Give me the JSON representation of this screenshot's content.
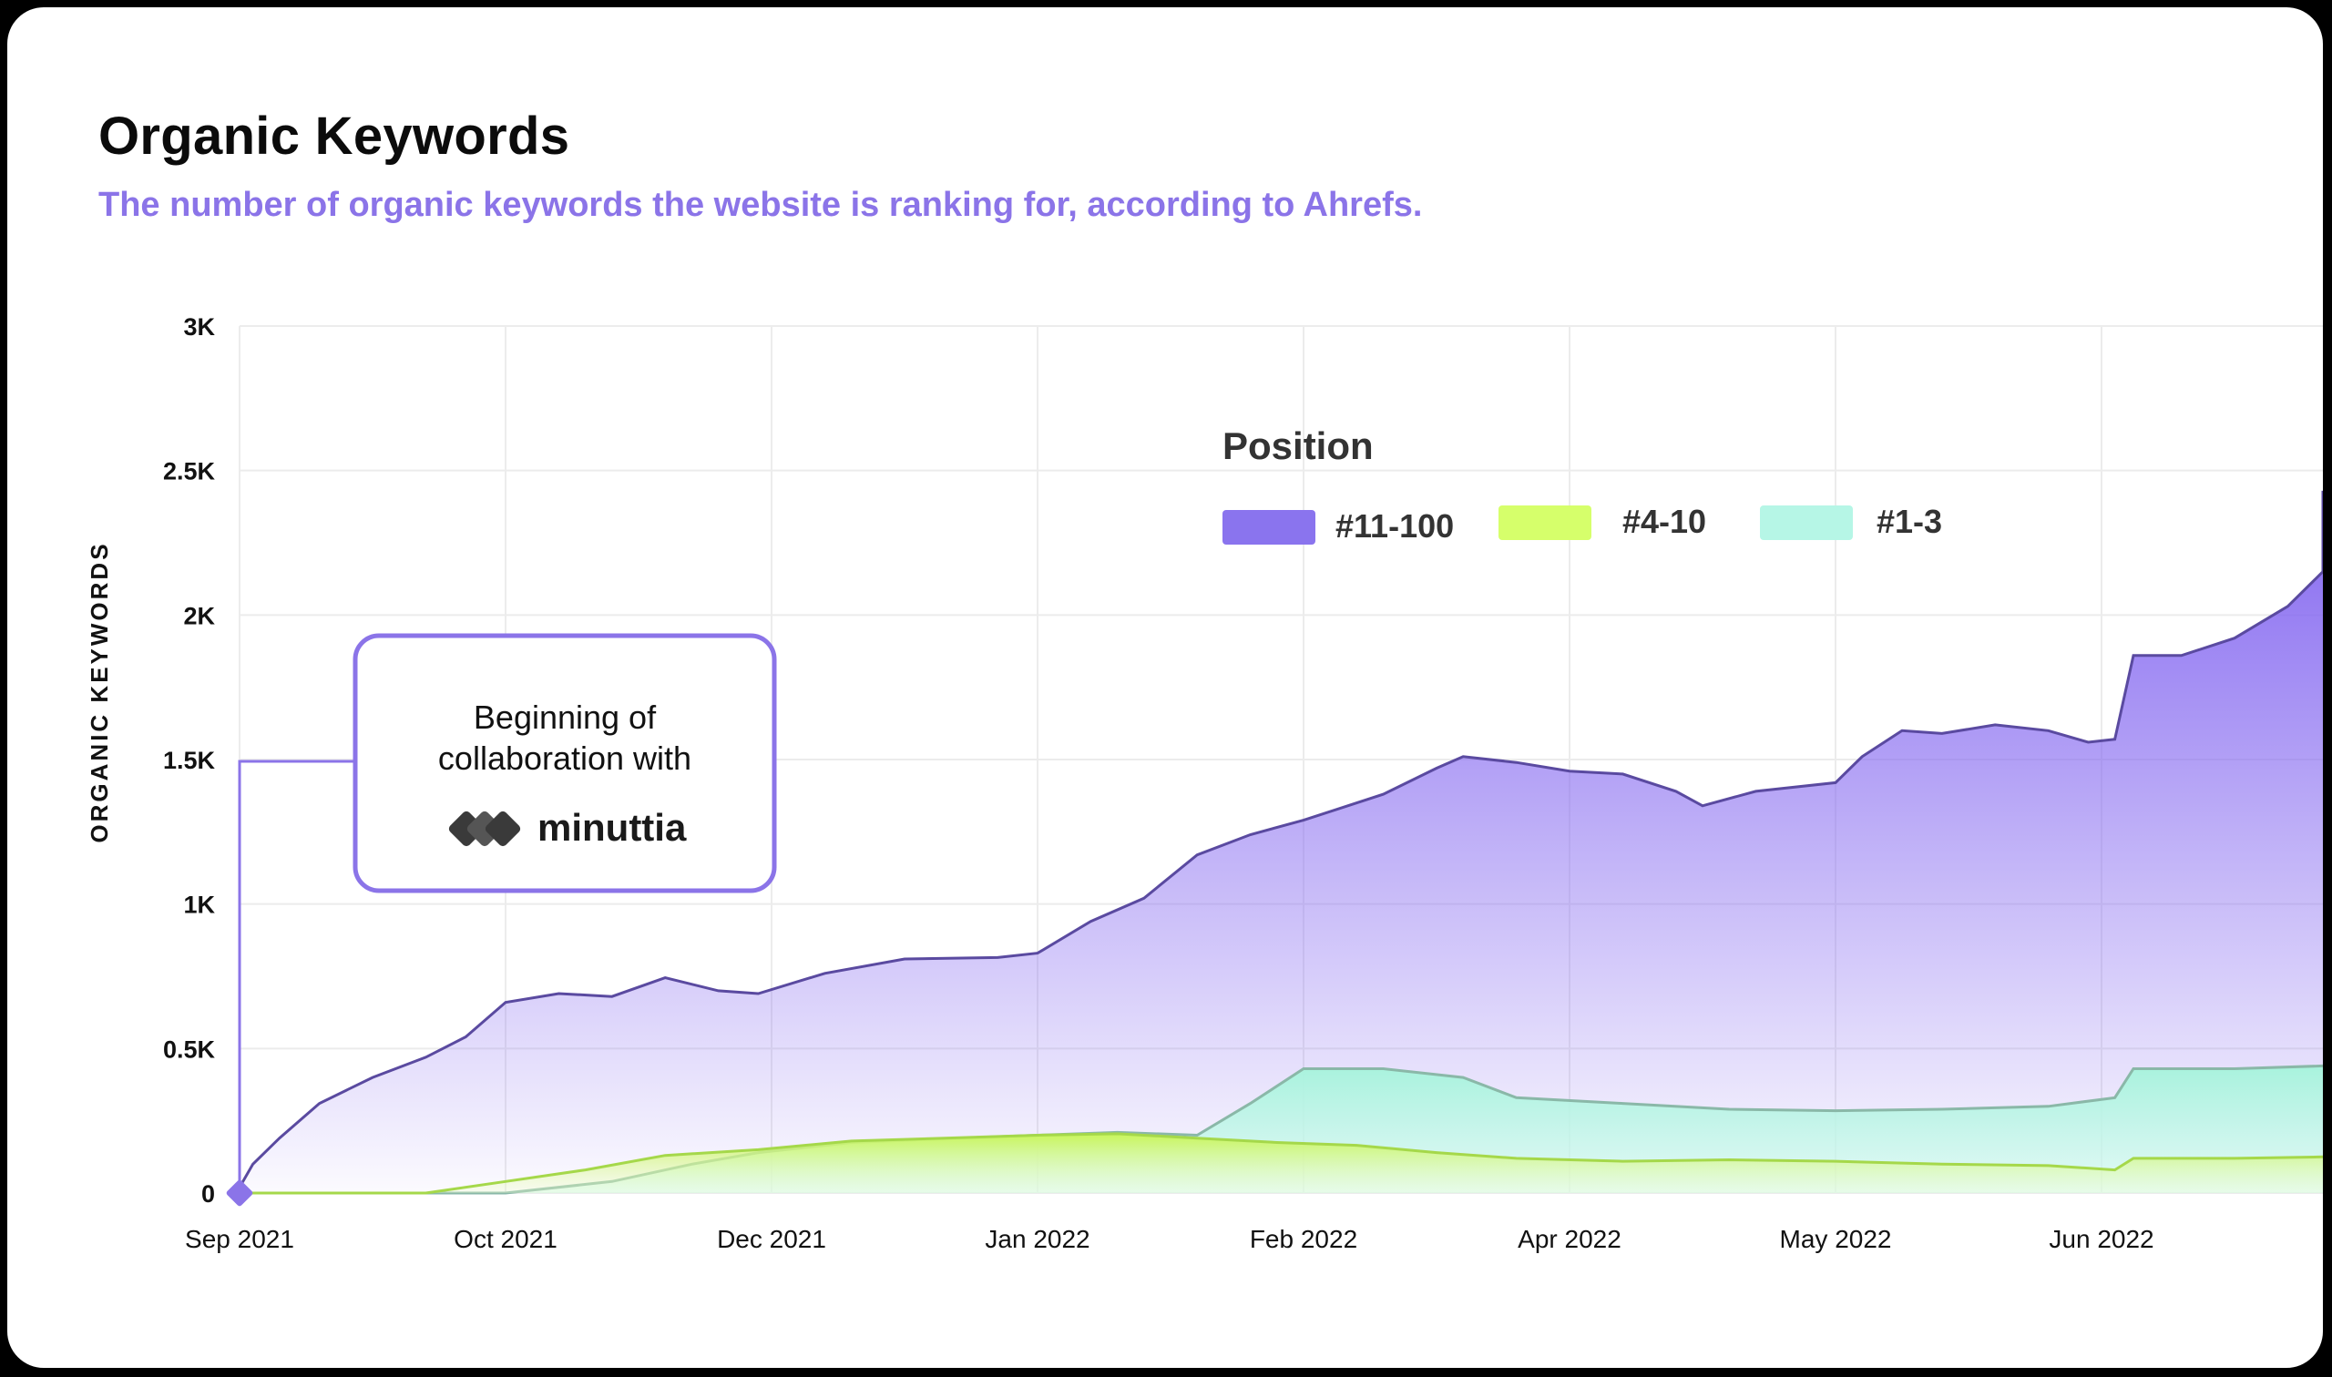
{
  "header": {
    "title": "Organic Keywords",
    "subtitle": "The number of organic keywords the website is ranking for, according to Ahrefs."
  },
  "annotation": {
    "line1": "Beginning of",
    "line2": "collaboration with",
    "brand": "minuttia"
  },
  "colors": {
    "series_11_100": "#8a74ee",
    "series_4_10": "#d6ff6b",
    "series_1_3": "#b6f6e6",
    "accent": "#8b74e8",
    "grid": "#ececec"
  },
  "chart_data": {
    "type": "area",
    "ylabel": "ORGANIC KEYWORDS",
    "ylim": [
      0,
      3000
    ],
    "y_ticks": [
      {
        "value": 0,
        "label": "0"
      },
      {
        "value": 500,
        "label": "0.5K"
      },
      {
        "value": 1000,
        "label": "1K"
      },
      {
        "value": 1500,
        "label": "1.5K"
      },
      {
        "value": 2000,
        "label": "2K"
      },
      {
        "value": 2500,
        "label": "2.5K"
      },
      {
        "value": 3000,
        "label": "3K"
      }
    ],
    "x_ticks": [
      "Sep 2021",
      "Oct 2021",
      "Dec 2021",
      "Jan 2022",
      "Feb 2022",
      "Apr 2022",
      "May 2022",
      "Jun 2022"
    ],
    "legend_title": "Position",
    "legend_position": "top-center",
    "grid": true,
    "series": [
      {
        "name": "#11-100",
        "color": "#8a74ee",
        "values": [
          [
            0,
            20
          ],
          [
            0.05,
            100
          ],
          [
            0.15,
            190
          ],
          [
            0.3,
            310
          ],
          [
            0.5,
            400
          ],
          [
            0.7,
            470
          ],
          [
            0.85,
            540
          ],
          [
            1.0,
            660
          ],
          [
            1.2,
            690
          ],
          [
            1.4,
            680
          ],
          [
            1.6,
            745
          ],
          [
            1.8,
            700
          ],
          [
            1.95,
            690
          ],
          [
            2.2,
            760
          ],
          [
            2.5,
            810
          ],
          [
            2.85,
            815
          ],
          [
            3.0,
            830
          ],
          [
            3.2,
            940
          ],
          [
            3.4,
            1020
          ],
          [
            3.6,
            1170
          ],
          [
            3.8,
            1240
          ],
          [
            4.0,
            1290
          ],
          [
            4.3,
            1380
          ],
          [
            4.5,
            1470
          ],
          [
            4.6,
            1510
          ],
          [
            4.8,
            1490
          ],
          [
            5.0,
            1460
          ],
          [
            5.2,
            1450
          ],
          [
            5.4,
            1390
          ],
          [
            5.5,
            1340
          ],
          [
            5.7,
            1390
          ],
          [
            6.0,
            1420
          ],
          [
            6.1,
            1510
          ],
          [
            6.25,
            1600
          ],
          [
            6.4,
            1590
          ],
          [
            6.6,
            1620
          ],
          [
            6.8,
            1600
          ],
          [
            6.95,
            1560
          ],
          [
            7.05,
            1570
          ],
          [
            7.12,
            1860
          ],
          [
            7.3,
            1860
          ],
          [
            7.5,
            1920
          ],
          [
            7.7,
            2030
          ],
          [
            7.9,
            2150
          ],
          [
            8.0,
            2320
          ],
          [
            8.08,
            2430
          ]
        ]
      },
      {
        "name": "#4-10",
        "color": "#d6ff6b",
        "values": [
          [
            0,
            0
          ],
          [
            0.7,
            0
          ],
          [
            1.0,
            40
          ],
          [
            1.3,
            80
          ],
          [
            1.6,
            130
          ],
          [
            1.95,
            150
          ],
          [
            2.3,
            180
          ],
          [
            2.65,
            190
          ],
          [
            3.0,
            200
          ],
          [
            3.3,
            205
          ],
          [
            3.6,
            190
          ],
          [
            3.9,
            175
          ],
          [
            4.2,
            165
          ],
          [
            4.5,
            140
          ],
          [
            4.8,
            120
          ],
          [
            5.2,
            110
          ],
          [
            5.6,
            115
          ],
          [
            6.0,
            110
          ],
          [
            6.4,
            100
          ],
          [
            6.8,
            95
          ],
          [
            7.05,
            80
          ],
          [
            7.12,
            120
          ],
          [
            7.5,
            120
          ],
          [
            8.08,
            125
          ]
        ]
      },
      {
        "name": "#1-3",
        "color": "#b6f6e6",
        "values": [
          [
            0,
            0
          ],
          [
            1.0,
            0
          ],
          [
            1.4,
            40
          ],
          [
            1.7,
            100
          ],
          [
            1.95,
            140
          ],
          [
            2.3,
            175
          ],
          [
            2.7,
            190
          ],
          [
            3.0,
            200
          ],
          [
            3.3,
            210
          ],
          [
            3.6,
            200
          ],
          [
            3.8,
            310
          ],
          [
            4.0,
            430
          ],
          [
            4.3,
            430
          ],
          [
            4.6,
            400
          ],
          [
            4.8,
            330
          ],
          [
            5.2,
            310
          ],
          [
            5.6,
            290
          ],
          [
            6.0,
            285
          ],
          [
            6.4,
            290
          ],
          [
            6.8,
            300
          ],
          [
            7.05,
            330
          ],
          [
            7.12,
            430
          ],
          [
            7.5,
            430
          ],
          [
            8.08,
            440
          ]
        ]
      }
    ]
  }
}
